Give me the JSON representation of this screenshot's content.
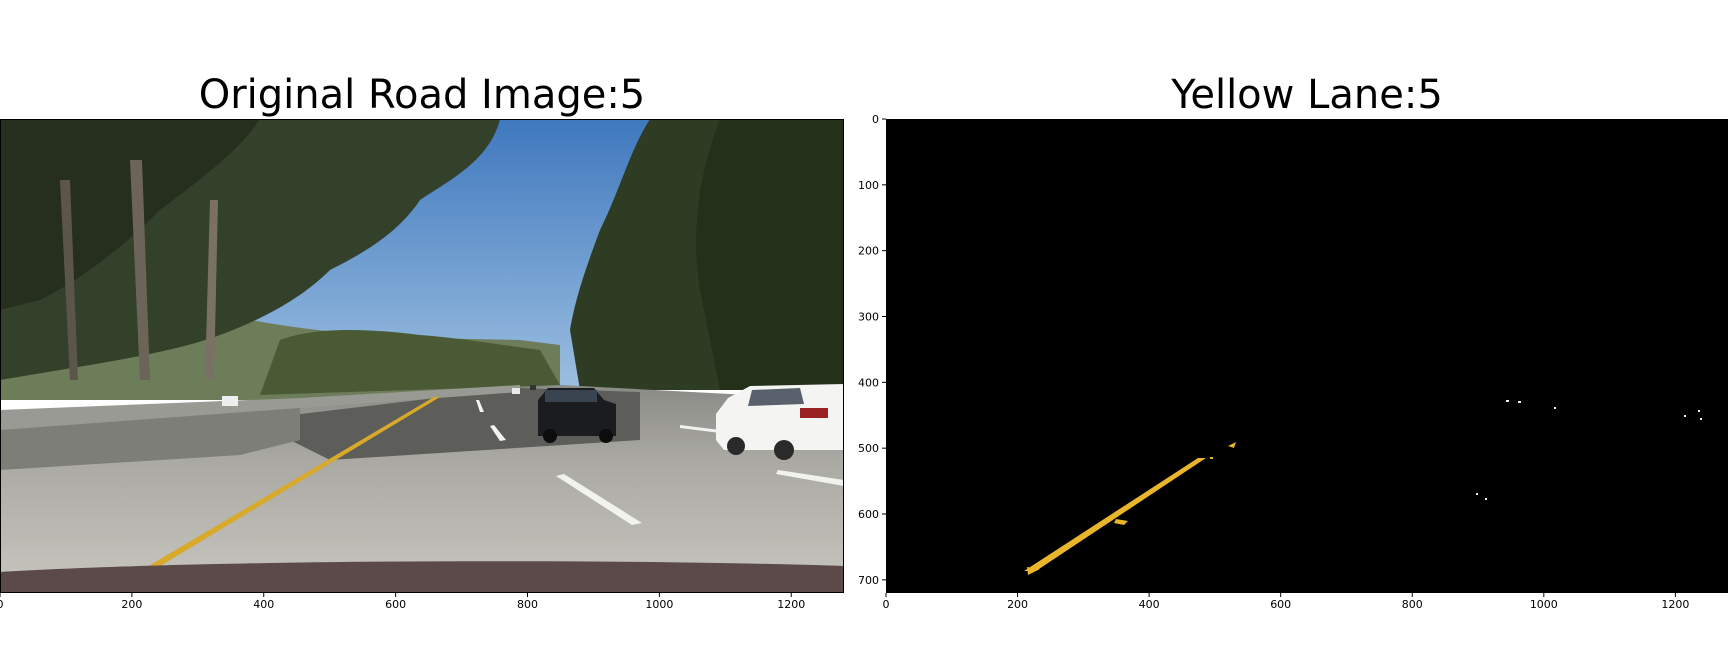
{
  "left_panel": {
    "title": "Original Road Image:5",
    "x_ticks": [
      0,
      200,
      400,
      600,
      800,
      1000,
      1200
    ]
  },
  "right_panel": {
    "title": "Yellow Lane:5",
    "x_ticks": [
      0,
      200,
      400,
      600,
      800,
      1000,
      1200
    ],
    "y_ticks": [
      0,
      100,
      200,
      300,
      400,
      500,
      600,
      700
    ]
  },
  "colors": {
    "sky": "#4f86c6",
    "road": "#b9b8b0",
    "lane_yellow": "#e9b52a",
    "mask_background": "#000000"
  }
}
